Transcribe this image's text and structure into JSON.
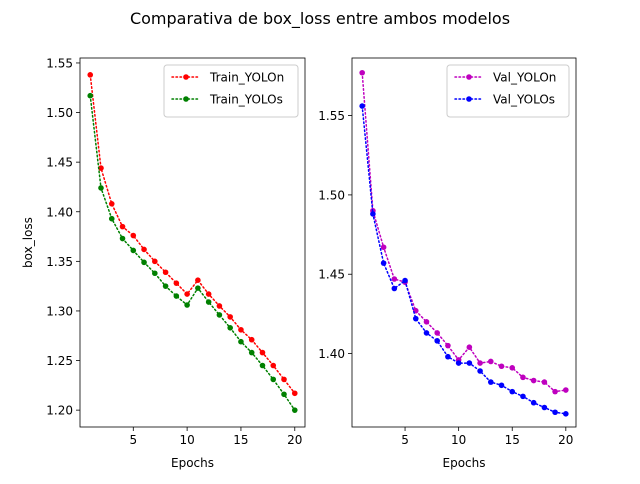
{
  "figure": {
    "title": "Comparativa de box_loss entre ambos modelos"
  },
  "chart_data": [
    {
      "type": "line",
      "title": "",
      "xlabel": "Epochs",
      "ylabel": "box_loss",
      "xlim": [
        0.05,
        20.95
      ],
      "ylim": [
        1.183,
        1.555
      ],
      "xticks": [
        5,
        10,
        15,
        20
      ],
      "yticks": [
        1.2,
        1.25,
        1.3,
        1.35,
        1.4,
        1.45,
        1.5,
        1.55
      ],
      "ytick_labels": [
        "1.20",
        "1.25",
        "1.30",
        "1.35",
        "1.40",
        "1.45",
        "1.50",
        "1.55"
      ],
      "grid": false,
      "legend": "top-right",
      "x": [
        1,
        2,
        3,
        4,
        5,
        6,
        7,
        8,
        9,
        10,
        11,
        12,
        13,
        14,
        15,
        16,
        17,
        18,
        19,
        20
      ],
      "series": [
        {
          "name": "Train_YOLOn",
          "color": "#ff0000",
          "linestyle": "dotted",
          "marker": "circle",
          "values": [
            1.538,
            1.444,
            1.408,
            1.385,
            1.376,
            1.362,
            1.35,
            1.339,
            1.328,
            1.317,
            1.331,
            1.317,
            1.305,
            1.294,
            1.281,
            1.271,
            1.258,
            1.245,
            1.231,
            1.217
          ]
        },
        {
          "name": "Train_YOLOs",
          "color": "#008000",
          "linestyle": "dotted",
          "marker": "circle",
          "values": [
            1.517,
            1.424,
            1.393,
            1.373,
            1.361,
            1.349,
            1.338,
            1.325,
            1.315,
            1.306,
            1.323,
            1.309,
            1.296,
            1.283,
            1.269,
            1.258,
            1.245,
            1.231,
            1.216,
            1.2
          ]
        }
      ]
    },
    {
      "type": "line",
      "title": "",
      "xlabel": "Epochs",
      "ylabel": "",
      "xlim": [
        0.05,
        20.95
      ],
      "ylim": [
        1.3537,
        1.5863
      ],
      "xticks": [
        5,
        10,
        15,
        20
      ],
      "yticks": [
        1.4,
        1.45,
        1.5,
        1.55
      ],
      "ytick_labels": [
        "1.40",
        "1.45",
        "1.50",
        "1.55"
      ],
      "grid": false,
      "legend": "top-right",
      "x": [
        1,
        2,
        3,
        4,
        5,
        6,
        7,
        8,
        9,
        10,
        11,
        12,
        13,
        14,
        15,
        16,
        17,
        18,
        19,
        20
      ],
      "series": [
        {
          "name": "Val_YOLOn",
          "color": "#bf00bf",
          "linestyle": "dotted",
          "marker": "circle",
          "values": [
            1.577,
            1.49,
            1.467,
            1.447,
            1.445,
            1.427,
            1.42,
            1.413,
            1.405,
            1.396,
            1.404,
            1.394,
            1.395,
            1.392,
            1.391,
            1.385,
            1.383,
            1.382,
            1.376,
            1.377
          ]
        },
        {
          "name": "Val_YOLOs",
          "color": "#0000ff",
          "linestyle": "dotted",
          "marker": "circle",
          "values": [
            1.556,
            1.488,
            1.457,
            1.441,
            1.446,
            1.422,
            1.413,
            1.408,
            1.398,
            1.394,
            1.394,
            1.389,
            1.382,
            1.38,
            1.376,
            1.373,
            1.369,
            1.366,
            1.363,
            1.362
          ]
        }
      ]
    }
  ]
}
